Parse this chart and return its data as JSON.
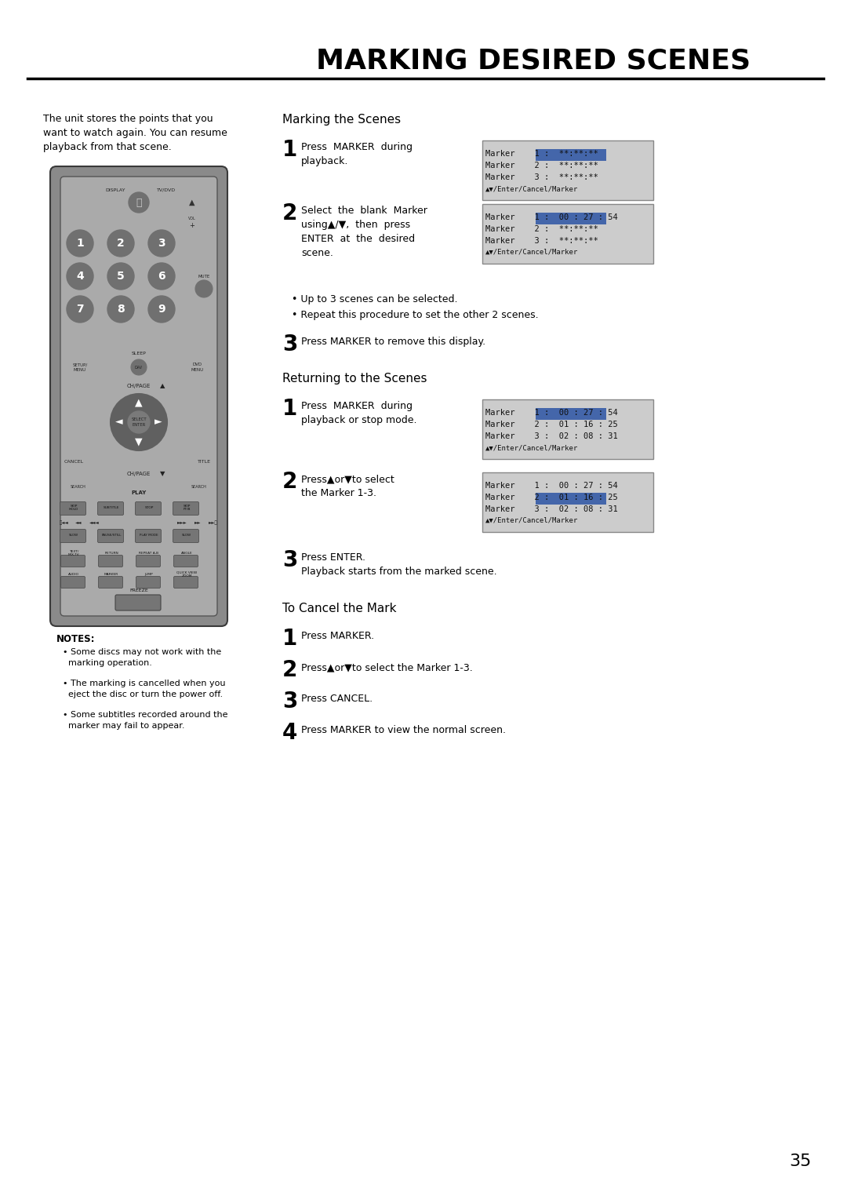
{
  "title": "MARKING DESIRED SCENES",
  "page_number": "35",
  "background_color": "#ffffff",
  "intro_text": "The unit stores the points that you\nwant to watch again. You can resume\nplayback from that scene.",
  "section1_title": "Marking the Scenes",
  "section2_title": "Returning to the Scenes",
  "section3_title": "To Cancel the Mark",
  "notes_title": "NOTES:",
  "notes": [
    "Some discs may not work with the\n  marking operation.",
    "The marking is cancelled when you\n  eject the disc or turn the power off.",
    "Some subtitles recorded around the\n  marker may fail to appear."
  ],
  "marking_steps": [
    {
      "num": "1",
      "text_lines": [
        "Press  MARKER  during",
        "playback."
      ],
      "box_lines": [
        "Marker    1 :  **:**:**",
        "Marker    2 :  **:**:**",
        "Marker    3 :  **:**:**",
        "▲▼/Enter/Cancel/Marker"
      ],
      "highlight_line": 0
    },
    {
      "num": "2",
      "text_lines": [
        "Select  the  blank  Marker",
        "using▲/▼,  then  press",
        "ENTER  at  the  desired",
        "scene."
      ],
      "box_lines": [
        "Marker    1 :  00 : 27 : 54",
        "Marker    2 :  **:**:**",
        "Marker    3 :  **:**:**",
        "▲▼/Enter/Cancel/Marker"
      ],
      "highlight_line": 0
    },
    {
      "num": "3",
      "text_lines": [
        "Press MARKER to remove this display."
      ],
      "box_lines": null,
      "highlight_line": -1
    }
  ],
  "bullets": [
    "• Up to 3 scenes can be selected.",
    "• Repeat this procedure to set the other 2 scenes."
  ],
  "returning_steps": [
    {
      "num": "1",
      "text_lines": [
        "Press  MARKER  during",
        "playback or stop mode."
      ],
      "box_lines": [
        "Marker    1 :  00 : 27 : 54",
        "Marker    2 :  01 : 16 : 25",
        "Marker    3 :  02 : 08 : 31",
        "▲▼/Enter/Cancel/Marker"
      ],
      "highlight_line": 0
    },
    {
      "num": "2",
      "text_lines": [
        "Press▲or▼to select",
        "the Marker 1-3."
      ],
      "box_lines": [
        "Marker    1 :  00 : 27 : 54",
        "Marker    2 :  01 : 16 : 25",
        "Marker    3 :  02 : 08 : 31",
        "▲▼/Enter/Cancel/Marker"
      ],
      "highlight_line": 1
    },
    {
      "num": "3",
      "text_lines": [
        "Press ENTER.",
        "Playback starts from the marked scene."
      ],
      "box_lines": null,
      "highlight_line": -1
    }
  ],
  "cancel_steps": [
    {
      "num": "1",
      "text_lines": [
        "Press MARKER."
      ]
    },
    {
      "num": "2",
      "text_lines": [
        "Press▲or▼to select the Marker 1-3."
      ]
    },
    {
      "num": "3",
      "text_lines": [
        "Press CANCEL."
      ]
    },
    {
      "num": "4",
      "text_lines": [
        "Press MARKER to view the normal screen."
      ]
    }
  ]
}
